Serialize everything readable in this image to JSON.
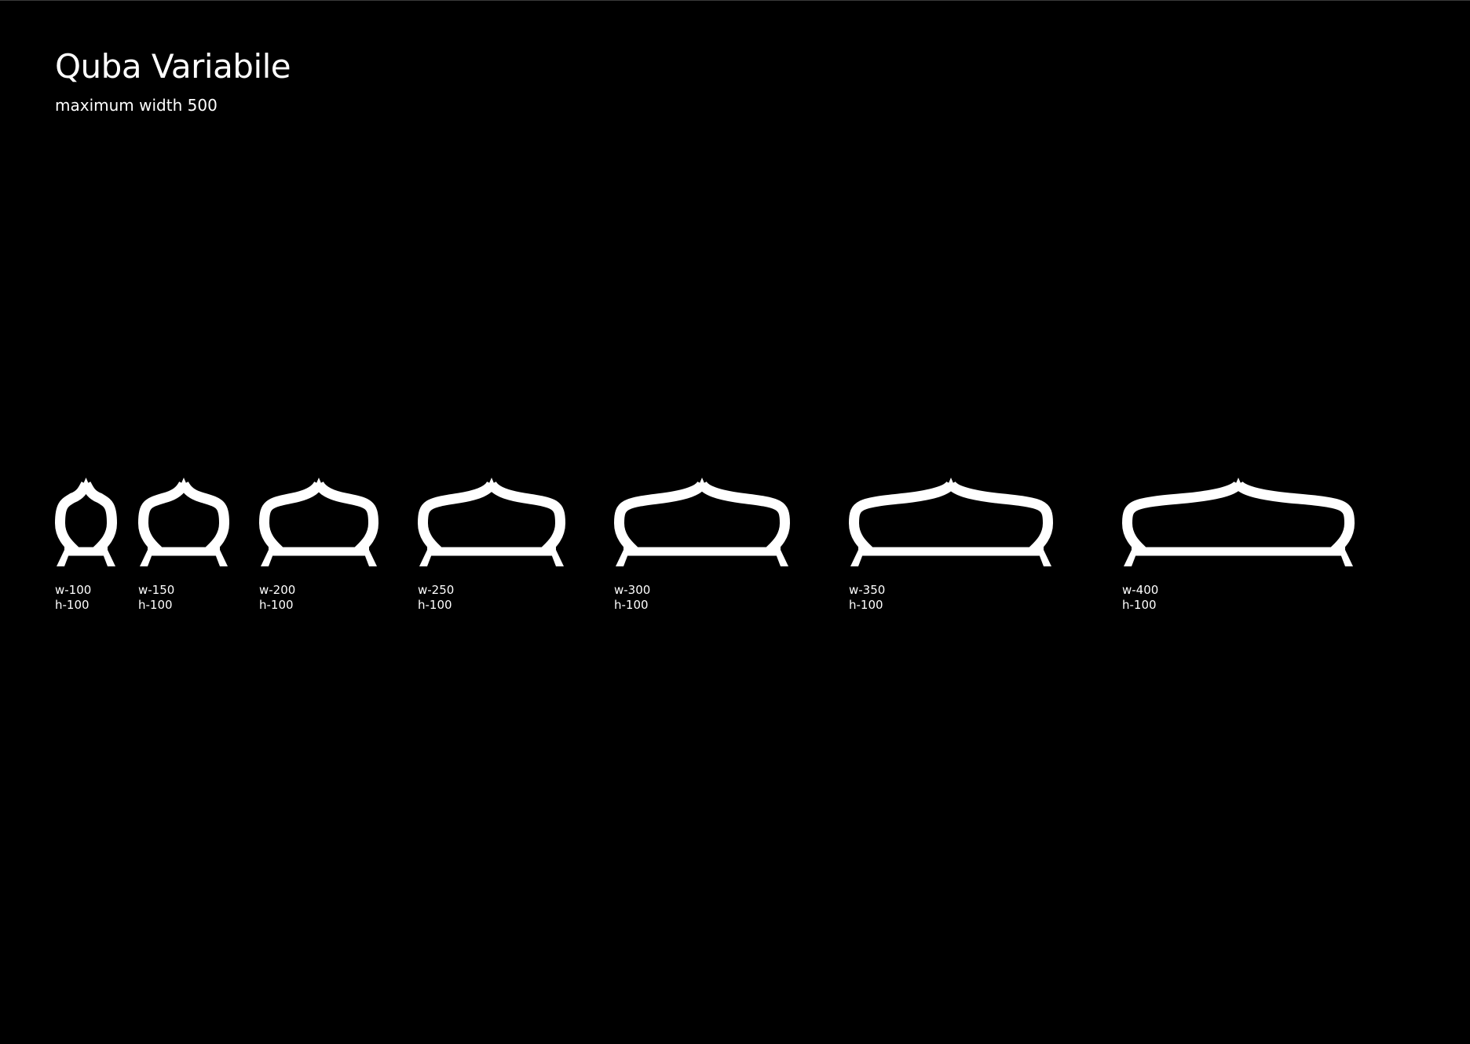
{
  "title": "Quba Variabile",
  "subtitle": "maximum width 500",
  "colors": {
    "background": "#000000",
    "foreground": "#ffffff"
  },
  "glyphs": [
    {
      "width_label": "w-100",
      "height_label": "h-100",
      "width": 100,
      "height": 100
    },
    {
      "width_label": "w-150",
      "height_label": "h-100",
      "width": 150,
      "height": 100
    },
    {
      "width_label": "w-200",
      "height_label": "h-100",
      "width": 200,
      "height": 100
    },
    {
      "width_label": "w-250",
      "height_label": "h-100",
      "width": 250,
      "height": 100
    },
    {
      "width_label": "w-300",
      "height_label": "h-100",
      "width": 300,
      "height": 100
    },
    {
      "width_label": "w-350",
      "height_label": "h-100",
      "width": 350,
      "height": 100
    },
    {
      "width_label": "w-400",
      "height_label": "h-100",
      "width": 400,
      "height": 100
    }
  ]
}
